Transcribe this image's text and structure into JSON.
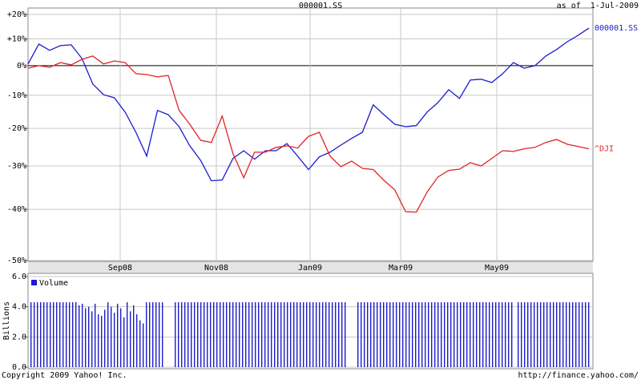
{
  "chart_data": [
    {
      "type": "line",
      "title": "000001.SS",
      "subtitle": "as of  1-Jul-2009",
      "log_scale": true,
      "grid": true,
      "ylim": [
        -50,
        20
      ],
      "yticks": [
        {
          "value": 20,
          "label": "+20%"
        },
        {
          "value": 10,
          "label": "+10%"
        },
        {
          "value": 0,
          "label": "0%"
        },
        {
          "value": -10,
          "label": "-10%"
        },
        {
          "value": -20,
          "label": "-20%"
        },
        {
          "value": -30,
          "label": "-30%"
        },
        {
          "value": -40,
          "label": "-40%"
        },
        {
          "value": -50,
          "label": "-50%"
        }
      ],
      "xlim": [
        0,
        52
      ],
      "xticks": [
        {
          "value": 8.54,
          "label": "Sep08"
        },
        {
          "value": 17.46,
          "label": "Nov08"
        },
        {
          "value": 26.15,
          "label": "Jan09"
        },
        {
          "value": 34.55,
          "label": "Mar09"
        },
        {
          "value": 43.46,
          "label": "May09"
        }
      ],
      "series": [
        {
          "name": "000001.SS",
          "color": "#1c1ccc",
          "values": [
            0.6,
            8.0,
            5.6,
            7.4,
            7.7,
            2.6,
            -6.3,
            -9.8,
            -10.8,
            -15.2,
            -21.1,
            -27.5,
            -14.7,
            -16.0,
            -19.5,
            -24.8,
            -28.6,
            -33.6,
            -33.4,
            -28.1,
            -26.1,
            -28.3,
            -26.1,
            -26.1,
            -24.2,
            -27.5,
            -30.9,
            -27.7,
            -26.5,
            -24.6,
            -22.8,
            -21.1,
            -13.0,
            -16.0,
            -18.8,
            -19.5,
            -19.2,
            -15.2,
            -12.3,
            -8.2,
            -11.0,
            -5.0,
            -4.7,
            -5.8,
            -2.8,
            1.1,
            -0.9,
            0,
            3.5,
            5.9,
            8.9,
            11.4,
            14.3
          ]
        },
        {
          "name": "^DJI",
          "color": "#e02424",
          "values": [
            -0.9,
            0,
            -0.6,
            1.1,
            0.3,
            2.3,
            3.5,
            0.6,
            1.7,
            1.1,
            -2.8,
            -3.1,
            -3.9,
            -3.4,
            -14.7,
            -18.8,
            -23.3,
            -23.9,
            -16.4,
            -26.9,
            -32.9,
            -26.5,
            -26.5,
            -25.2,
            -24.8,
            -25.4,
            -22.2,
            -21.1,
            -27.5,
            -30.2,
            -28.8,
            -30.6,
            -30.9,
            -33.5,
            -35.7,
            -40.5,
            -40.6,
            -36.2,
            -32.7,
            -31.1,
            -30.8,
            -29.2,
            -30.0,
            -28.1,
            -26.1,
            -26.3,
            -25.6,
            -25.2,
            -23.9,
            -23.1,
            -24.4,
            -25.0,
            -25.6
          ]
        }
      ]
    },
    {
      "type": "bar",
      "y_label": "Billions",
      "ylim": [
        0,
        6
      ],
      "yticks": [
        {
          "value": 6,
          "label": "6.0"
        },
        {
          "value": 4,
          "label": "4.0"
        },
        {
          "value": 2,
          "label": "2.0"
        },
        {
          "value": 0,
          "label": "0.0"
        }
      ],
      "series": [
        {
          "name": "Volume",
          "color": "#1c1ccc",
          "values": [
            4.3,
            4.3,
            4.3,
            4.3,
            4.3,
            4.3,
            4.3,
            4.3,
            4.3,
            4.3,
            4.3,
            4.3,
            4.3,
            4.3,
            4.3,
            4.1,
            4.2,
            3.9,
            4.0,
            3.7,
            4.2,
            3.5,
            3.4,
            3.8,
            4.3,
            4.0,
            3.6,
            4.2,
            3.9,
            3.3,
            4.3,
            3.7,
            4.1,
            3.5,
            3.1,
            2.9,
            4.3,
            4.3,
            4.3,
            4.3,
            4.3,
            4.3,
            null,
            null,
            null,
            4.3,
            4.3,
            4.3,
            4.3,
            4.3,
            4.3,
            4.3,
            4.3,
            4.3,
            4.3,
            4.3,
            4.3,
            4.3,
            4.3,
            4.3,
            4.3,
            4.3,
            4.3,
            4.3,
            4.3,
            4.3,
            4.3,
            4.3,
            4.3,
            4.3,
            4.3,
            4.3,
            4.3,
            4.3,
            4.3,
            4.3,
            4.3,
            4.3,
            4.3,
            4.3,
            4.3,
            4.3,
            4.3,
            4.3,
            4.3,
            4.3,
            4.3,
            4.3,
            4.3,
            4.3,
            4.3,
            4.3,
            4.3,
            4.3,
            4.3,
            4.3,
            4.3,
            4.3,
            4.3,
            null,
            null,
            null,
            4.3,
            4.3,
            4.3,
            4.3,
            4.3,
            4.3,
            4.3,
            4.3,
            4.3,
            4.3,
            4.3,
            4.3,
            4.3,
            4.3,
            4.3,
            4.3,
            4.3,
            4.3,
            4.3,
            4.3,
            4.3,
            4.3,
            4.3,
            4.3,
            4.3,
            4.3,
            4.3,
            4.3,
            4.3,
            4.3,
            4.3,
            4.3,
            4.3,
            4.3,
            4.3,
            4.3,
            4.3,
            4.3,
            4.3,
            4.3,
            4.3,
            4.3,
            4.3,
            4.3,
            4.3,
            4.3,
            4.3,
            4.3,
            4.3,
            null,
            4.3,
            4.3,
            4.3,
            4.3,
            4.3,
            4.3,
            4.3,
            4.3,
            4.3,
            4.3,
            4.3,
            4.3,
            4.3,
            4.3,
            4.3,
            4.3,
            4.3,
            4.3,
            4.3,
            4.3,
            4.3,
            4.3,
            4.3
          ]
        }
      ]
    }
  ],
  "footer": {
    "copyright": "Copyright 2009 Yahoo! Inc.",
    "url": "http://finance.yahoo.com/"
  }
}
